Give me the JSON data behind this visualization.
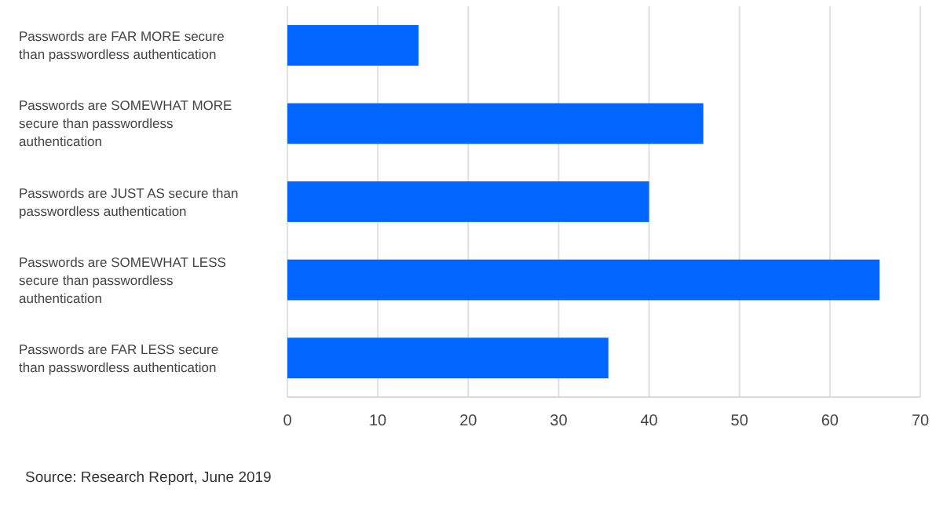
{
  "chart_data": {
    "type": "bar",
    "orientation": "horizontal",
    "categories": [
      "Passwords are FAR MORE secure than passwordless authentication",
      "Passwords are SOMEWHAT MORE secure than passwordless authentication",
      "Passwords are JUST AS secure than passwordless authentication",
      "Passwords are SOMEWHAT LESS secure than passwordless authentication",
      "Passwords are FAR LESS secure than passwordless authentication"
    ],
    "values": [
      14.5,
      46,
      40,
      65.5,
      35.5
    ],
    "color": "#0066ff",
    "xlim": [
      0,
      70
    ],
    "xticks": [
      0,
      10,
      20,
      30,
      40,
      50,
      60,
      70
    ],
    "grid": "x",
    "annotations": [
      "Source: Research Report, June 2019"
    ]
  }
}
